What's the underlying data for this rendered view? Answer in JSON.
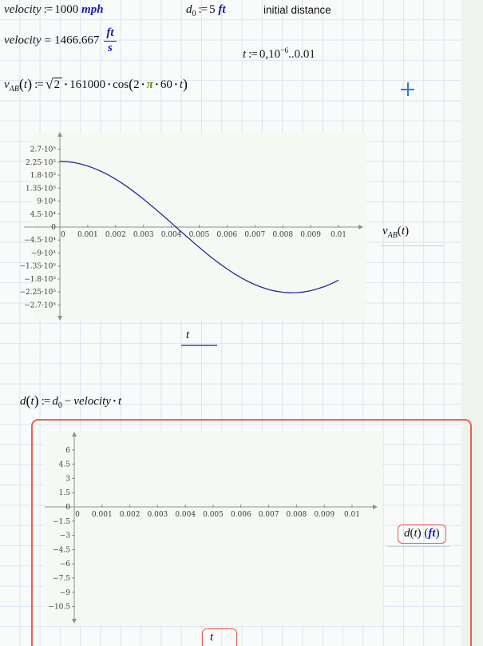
{
  "math": {
    "assign": ":=",
    "equals": "=",
    "dot": "·",
    "minus": "−",
    "sqrt": "√",
    "lp": "(",
    "rp": ")",
    "velocity_def": {
      "name": "velocity",
      "value": "1000",
      "unit": "mph"
    },
    "d0_def": {
      "name": "d",
      "sub": "0",
      "value": "5",
      "unit": "ft"
    },
    "note": "initial distance",
    "velocity_eval": {
      "name": "velocity",
      "value": "1466.667",
      "unit_num": "ft",
      "unit_den": "s"
    },
    "t_range": {
      "name": "t",
      "start": "0,10",
      "exp": "−6",
      "dots": "..",
      "end": "0.01"
    },
    "vab_def": {
      "name": "v",
      "sub": "AB",
      "arg": "t",
      "radicand": "2",
      "coeff": "161000",
      "func": "cos",
      "f1": "2",
      "pi": "π",
      "f2": "60",
      "f3": "t"
    },
    "d_def": {
      "name": "d",
      "arg": "t",
      "rhs_base": "d",
      "rhs_sub": "0",
      "rhs_var": "velocity",
      "rhs_arg": "t"
    }
  },
  "plot1_labels": {
    "base": "v",
    "sub": "AB",
    "open": "(",
    "arg": "t",
    "close": ")",
    "x": "t"
  },
  "plot2_labels": {
    "base": "d",
    "open": "(",
    "arg": "t",
    "close": ")",
    "unit_open": "(",
    "unit": "ft",
    "unit_close": ")",
    "x": "t"
  },
  "colors": {
    "unit_blue": "#1a1ab5",
    "pi_olive": "#6e7f1c",
    "curve_navy": "#2a2a9c",
    "selection_red": "#ea6157",
    "crosshair_blue": "#2d7de0",
    "grid_line": "#d9e5f2",
    "axis_gray": "#8f8f8f"
  },
  "chart_data": [
    {
      "type": "line",
      "title": "",
      "xlabel": "t",
      "ylabel": "v_AB(t)",
      "xlim": [
        0,
        0.0105
      ],
      "ylim": [
        -283000,
        283000
      ],
      "grid": false,
      "xticks": [
        0,
        0.001,
        0.002,
        0.003,
        0.004,
        0.005,
        0.006,
        0.007,
        0.008,
        0.009,
        0.01
      ],
      "xtick_labels": [
        "0",
        "0.001",
        "0.002",
        "0.003",
        "0.004",
        "0.005",
        "0.006",
        "0.007",
        "0.008",
        "0.009",
        "0.01"
      ],
      "ytick_values": [
        270000,
        225000,
        180000,
        135000,
        90000,
        45000,
        0,
        -45000,
        -90000,
        -135000,
        -180000,
        -225000,
        -270000
      ],
      "ytick_labels": [
        "2.7·10⁵",
        "2.25·10⁵",
        "1.8·10⁵",
        "1.35·10⁵",
        "9·10⁴",
        "4.5·10⁴",
        "0",
        "−4.5·10⁴",
        "−9·10⁴",
        "−1.35·10⁵",
        "−1.8·10⁵",
        "−2.25·10⁵",
        "−2.7·10⁵"
      ],
      "series": [
        {
          "name": "v_AB(t)=sqrt(2)*161000*cos(2*pi*60*t)",
          "color": "#2a2a9c",
          "x0": 0,
          "dx": 0.00025,
          "y": [
            227688,
            226677,
            223656,
            218647,
            211700,
            202873,
            192245,
            179910,
            165978,
            150573,
            133833,
            115902,
            96944,
            77126,
            56623,
            35618,
            14296,
            -7152,
            -28536,
            -49666,
            -70360,
            -90425,
            -109686,
            -127970,
            -145133,
            -160999,
            -175434,
            -188313,
            -199522,
            -208957,
            -216541,
            -222202,
            -225888,
            -227573,
            -227237,
            -224883,
            -220532,
            -214222,
            -206014,
            -195975,
            -184199
          ]
        }
      ]
    },
    {
      "type": "line",
      "title": "",
      "xlabel": "t",
      "ylabel": "d(t) (ft)",
      "xlim": [
        0,
        0.0105
      ],
      "ylim": [
        -11.5,
        7
      ],
      "grid": false,
      "xticks": [
        0,
        0.001,
        0.002,
        0.003,
        0.004,
        0.005,
        0.006,
        0.007,
        0.008,
        0.009,
        0.01
      ],
      "xtick_labels": [
        "0",
        "0.001",
        "0.002",
        "0.003",
        "0.004",
        "0.005",
        "0.006",
        "0.007",
        "0.008",
        "0.009",
        "0.01"
      ],
      "ytick_values": [
        6,
        4.5,
        3,
        1.5,
        0,
        -1.5,
        -3,
        -4.5,
        -6,
        -7.5,
        -9,
        -10.5
      ],
      "ytick_labels": [
        "6",
        "4.5",
        "3",
        "1.5",
        "0",
        "−1.5",
        "−3",
        "−4.5",
        "−6",
        "−7.5",
        "−9",
        "−10.5"
      ],
      "series": []
    }
  ]
}
